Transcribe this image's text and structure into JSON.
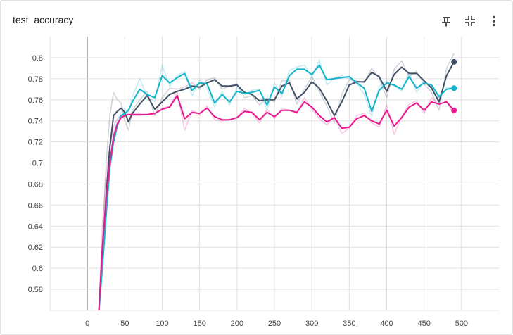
{
  "card": {
    "title": "test_accuracy",
    "actions": [
      {
        "name": "pin-icon"
      },
      {
        "name": "fit-domain-icon"
      },
      {
        "name": "more-vert-icon"
      }
    ]
  },
  "colors": {
    "gridline": "#e0e0e0",
    "zero_axis": "#9e9e9e",
    "tick_text": "#424242"
  },
  "chart_data": {
    "type": "line",
    "xlabel": "",
    "ylabel": "",
    "xlim": [
      -50,
      550
    ],
    "ylim": [
      0.56,
      0.82
    ],
    "x_ticks": [
      0,
      50,
      100,
      150,
      200,
      250,
      300,
      350,
      400,
      450,
      500
    ],
    "y_ticks": [
      0.58,
      0.6,
      0.62,
      0.64,
      0.66,
      0.68,
      0.7,
      0.72,
      0.74,
      0.76,
      0.78,
      0.8
    ],
    "x_tick_labels": [
      "0",
      "50",
      "100",
      "150",
      "200",
      "250",
      "300",
      "350",
      "400",
      "450",
      "500"
    ],
    "y_tick_labels": [
      "0.58",
      "0.6",
      "0.62",
      "0.64",
      "0.66",
      "0.68",
      "0.7",
      "0.72",
      "0.74",
      "0.76",
      "0.78",
      "0.8"
    ],
    "grid": true,
    "smoothed": true,
    "series": [
      {
        "color": "#425066",
        "x": [
          15,
          20,
          25,
          30,
          35,
          40,
          45,
          50,
          55,
          60,
          70,
          80,
          90,
          100,
          110,
          120,
          130,
          140,
          150,
          160,
          170,
          180,
          190,
          200,
          210,
          220,
          230,
          240,
          250,
          260,
          270,
          280,
          290,
          300,
          310,
          320,
          330,
          340,
          350,
          360,
          370,
          380,
          390,
          400,
          410,
          420,
          430,
          440,
          450,
          460,
          470,
          480,
          490
        ],
        "values": [
          0.555,
          0.61,
          0.67,
          0.715,
          0.745,
          0.749,
          0.752,
          0.748,
          0.739,
          0.747,
          0.756,
          0.764,
          0.751,
          0.758,
          0.765,
          0.768,
          0.77,
          0.773,
          0.772,
          0.776,
          0.779,
          0.773,
          0.773,
          0.774,
          0.767,
          0.765,
          0.759,
          0.76,
          0.76,
          0.773,
          0.776,
          0.761,
          0.767,
          0.777,
          0.771,
          0.759,
          0.745,
          0.758,
          0.774,
          0.777,
          0.777,
          0.786,
          0.782,
          0.768,
          0.784,
          0.791,
          0.785,
          0.785,
          0.778,
          0.771,
          0.758,
          0.783,
          0.796
        ],
        "raw": [
          0.55,
          0.62,
          0.7,
          0.745,
          0.767,
          0.76,
          0.757,
          0.74,
          0.731,
          0.75,
          0.76,
          0.768,
          0.745,
          0.762,
          0.771,
          0.77,
          0.772,
          0.776,
          0.77,
          0.779,
          0.781,
          0.77,
          0.773,
          0.775,
          0.762,
          0.764,
          0.755,
          0.762,
          0.758,
          0.778,
          0.778,
          0.756,
          0.77,
          0.782,
          0.768,
          0.754,
          0.738,
          0.765,
          0.779,
          0.778,
          0.776,
          0.79,
          0.78,
          0.762,
          0.789,
          0.797,
          0.782,
          0.787,
          0.775,
          0.767,
          0.75,
          0.79,
          0.804
        ]
      },
      {
        "color": "#12b5cb",
        "x": [
          15,
          20,
          25,
          30,
          35,
          40,
          45,
          50,
          55,
          60,
          70,
          80,
          90,
          100,
          110,
          120,
          130,
          140,
          150,
          160,
          170,
          180,
          190,
          200,
          210,
          220,
          230,
          240,
          250,
          260,
          270,
          280,
          290,
          300,
          310,
          320,
          330,
          340,
          350,
          360,
          370,
          380,
          390,
          400,
          410,
          420,
          430,
          440,
          450,
          460,
          470,
          480,
          490
        ],
        "values": [
          0.555,
          0.6,
          0.65,
          0.695,
          0.72,
          0.735,
          0.745,
          0.747,
          0.75,
          0.758,
          0.77,
          0.765,
          0.762,
          0.783,
          0.776,
          0.781,
          0.785,
          0.769,
          0.776,
          0.775,
          0.757,
          0.765,
          0.758,
          0.768,
          0.766,
          0.767,
          0.769,
          0.755,
          0.772,
          0.766,
          0.783,
          0.789,
          0.789,
          0.784,
          0.793,
          0.779,
          0.78,
          0.781,
          0.782,
          0.776,
          0.771,
          0.749,
          0.769,
          0.776,
          0.774,
          0.77,
          0.782,
          0.771,
          0.776,
          0.774,
          0.763,
          0.77,
          0.771
        ],
        "raw": [
          0.55,
          0.61,
          0.665,
          0.705,
          0.728,
          0.74,
          0.748,
          0.752,
          0.746,
          0.763,
          0.78,
          0.763,
          0.758,
          0.793,
          0.773,
          0.783,
          0.787,
          0.764,
          0.779,
          0.771,
          0.753,
          0.768,
          0.755,
          0.772,
          0.765,
          0.769,
          0.77,
          0.75,
          0.776,
          0.763,
          0.788,
          0.791,
          0.793,
          0.781,
          0.798,
          0.774,
          0.781,
          0.783,
          0.78,
          0.776,
          0.765,
          0.744,
          0.773,
          0.778,
          0.773,
          0.768,
          0.786,
          0.767,
          0.778,
          0.772,
          0.76,
          0.772,
          0.771
        ]
      },
      {
        "color": "#e8188f",
        "x": [
          15,
          20,
          25,
          30,
          35,
          40,
          45,
          50,
          55,
          60,
          70,
          80,
          90,
          100,
          110,
          120,
          130,
          140,
          150,
          160,
          170,
          180,
          190,
          200,
          210,
          220,
          230,
          240,
          250,
          260,
          270,
          280,
          290,
          300,
          310,
          320,
          330,
          340,
          350,
          360,
          370,
          380,
          390,
          400,
          410,
          420,
          430,
          440,
          450,
          460,
          470,
          480,
          490
        ],
        "values": [
          0.555,
          0.62,
          0.665,
          0.7,
          0.725,
          0.737,
          0.743,
          0.745,
          0.746,
          0.746,
          0.746,
          0.746,
          0.747,
          0.751,
          0.753,
          0.764,
          0.742,
          0.748,
          0.747,
          0.752,
          0.744,
          0.741,
          0.741,
          0.743,
          0.749,
          0.748,
          0.741,
          0.748,
          0.744,
          0.75,
          0.75,
          0.748,
          0.758,
          0.753,
          0.745,
          0.739,
          0.743,
          0.733,
          0.734,
          0.742,
          0.745,
          0.74,
          0.737,
          0.75,
          0.735,
          0.743,
          0.753,
          0.757,
          0.75,
          0.758,
          0.756,
          0.758,
          0.75
        ],
        "raw": [
          0.55,
          0.64,
          0.69,
          0.715,
          0.735,
          0.742,
          0.745,
          0.745,
          0.746,
          0.745,
          0.745,
          0.746,
          0.747,
          0.752,
          0.754,
          0.767,
          0.731,
          0.75,
          0.746,
          0.754,
          0.741,
          0.74,
          0.741,
          0.743,
          0.752,
          0.747,
          0.738,
          0.751,
          0.742,
          0.752,
          0.75,
          0.747,
          0.762,
          0.751,
          0.742,
          0.736,
          0.744,
          0.728,
          0.733,
          0.745,
          0.747,
          0.738,
          0.734,
          0.755,
          0.727,
          0.744,
          0.756,
          0.759,
          0.747,
          0.762,
          0.755,
          0.759,
          0.745
        ]
      }
    ]
  }
}
